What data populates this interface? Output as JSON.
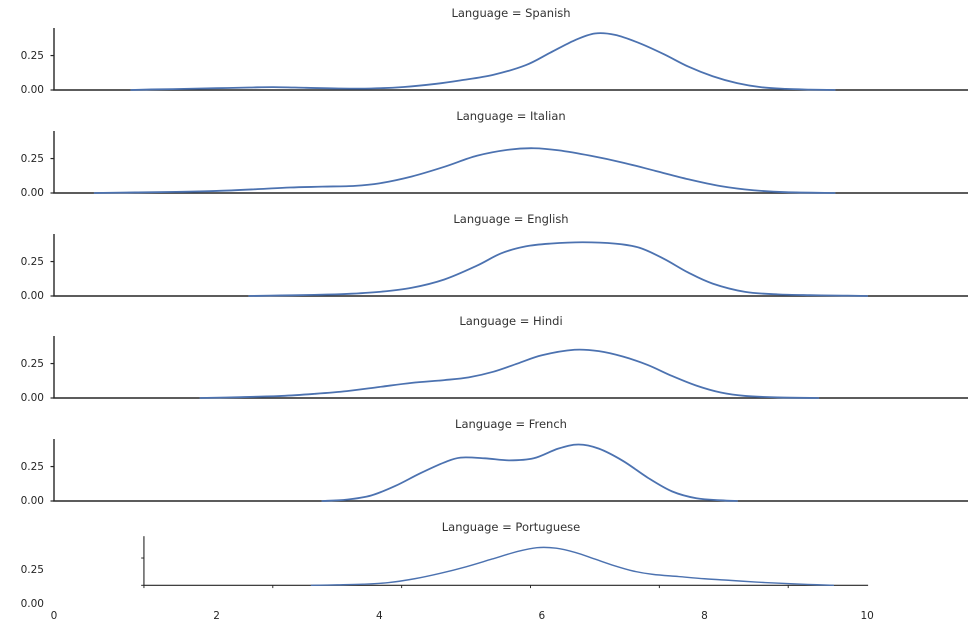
{
  "chart_data": {
    "type": "line",
    "subtype": "kde-facet-grid",
    "facet_row_variable": "Language",
    "x_axis": {
      "label": "",
      "lim": [
        0,
        11.24
      ],
      "ticks": [
        0,
        2,
        4,
        6,
        8,
        10
      ],
      "tick_labels": [
        "0",
        "2",
        "4",
        "6",
        "8",
        "10"
      ]
    },
    "y_axis": {
      "label": "",
      "lim": [
        0,
        0.45
      ],
      "ticks": [
        0.0,
        0.25
      ],
      "tick_labels": [
        "0.00",
        "0.25"
      ],
      "shared": true
    },
    "style": {
      "line_color": "#4c72b0",
      "line_width": 1.8,
      "axis_color": "#262626",
      "background": "#ffffff",
      "grid": false,
      "legend": "none"
    },
    "facets": [
      {
        "title": "Language = Spanish",
        "language": "Spanish",
        "peak_x": 6.6,
        "peak_density": 0.41,
        "points": [
          [
            0.95,
            0
          ],
          [
            1.2,
            0.004
          ],
          [
            1.6,
            0.008
          ],
          [
            2.0,
            0.013
          ],
          [
            2.4,
            0.018
          ],
          [
            2.7,
            0.021
          ],
          [
            3.1,
            0.016
          ],
          [
            3.5,
            0.011
          ],
          [
            3.9,
            0.011
          ],
          [
            4.3,
            0.022
          ],
          [
            4.7,
            0.045
          ],
          [
            5.0,
            0.07
          ],
          [
            5.4,
            0.11
          ],
          [
            5.8,
            0.18
          ],
          [
            6.1,
            0.27
          ],
          [
            6.4,
            0.36
          ],
          [
            6.65,
            0.41
          ],
          [
            6.9,
            0.4
          ],
          [
            7.2,
            0.34
          ],
          [
            7.5,
            0.26
          ],
          [
            7.8,
            0.17
          ],
          [
            8.1,
            0.1
          ],
          [
            8.4,
            0.05
          ],
          [
            8.7,
            0.02
          ],
          [
            9.0,
            0.008
          ],
          [
            9.3,
            0.003
          ],
          [
            9.6,
            0
          ]
        ]
      },
      {
        "title": "Language = Italian",
        "language": "Italian",
        "peak_x": 5.8,
        "peak_density": 0.325,
        "points": [
          [
            0.5,
            0
          ],
          [
            1.0,
            0.004
          ],
          [
            1.5,
            0.008
          ],
          [
            2.0,
            0.015
          ],
          [
            2.5,
            0.028
          ],
          [
            2.9,
            0.04
          ],
          [
            3.3,
            0.046
          ],
          [
            3.7,
            0.052
          ],
          [
            4.0,
            0.07
          ],
          [
            4.4,
            0.12
          ],
          [
            4.8,
            0.19
          ],
          [
            5.2,
            0.27
          ],
          [
            5.6,
            0.315
          ],
          [
            5.9,
            0.325
          ],
          [
            6.2,
            0.31
          ],
          [
            6.6,
            0.27
          ],
          [
            7.0,
            0.22
          ],
          [
            7.4,
            0.16
          ],
          [
            7.8,
            0.1
          ],
          [
            8.2,
            0.05
          ],
          [
            8.6,
            0.02
          ],
          [
            9.0,
            0.006
          ],
          [
            9.6,
            0
          ]
        ]
      },
      {
        "title": "Language = English",
        "language": "English",
        "peak_x": 6.5,
        "peak_density": 0.39,
        "points": [
          [
            2.4,
            0
          ],
          [
            2.8,
            0.004
          ],
          [
            3.2,
            0.008
          ],
          [
            3.6,
            0.015
          ],
          [
            4.0,
            0.03
          ],
          [
            4.4,
            0.06
          ],
          [
            4.8,
            0.12
          ],
          [
            5.2,
            0.22
          ],
          [
            5.5,
            0.31
          ],
          [
            5.8,
            0.36
          ],
          [
            6.1,
            0.38
          ],
          [
            6.5,
            0.39
          ],
          [
            6.9,
            0.38
          ],
          [
            7.2,
            0.35
          ],
          [
            7.5,
            0.27
          ],
          [
            7.8,
            0.17
          ],
          [
            8.1,
            0.09
          ],
          [
            8.5,
            0.03
          ],
          [
            8.9,
            0.012
          ],
          [
            9.3,
            0.006
          ],
          [
            9.7,
            0.003
          ],
          [
            10.0,
            0
          ]
        ]
      },
      {
        "title": "Language = Hindi",
        "language": "Hindi",
        "peak_x": 6.4,
        "peak_density": 0.35,
        "points": [
          [
            1.8,
            0
          ],
          [
            2.3,
            0.006
          ],
          [
            2.8,
            0.015
          ],
          [
            3.2,
            0.03
          ],
          [
            3.6,
            0.05
          ],
          [
            4.0,
            0.08
          ],
          [
            4.4,
            0.11
          ],
          [
            4.8,
            0.13
          ],
          [
            5.1,
            0.15
          ],
          [
            5.4,
            0.19
          ],
          [
            5.7,
            0.25
          ],
          [
            6.0,
            0.31
          ],
          [
            6.4,
            0.35
          ],
          [
            6.7,
            0.34
          ],
          [
            7.0,
            0.3
          ],
          [
            7.3,
            0.24
          ],
          [
            7.6,
            0.16
          ],
          [
            7.9,
            0.09
          ],
          [
            8.2,
            0.04
          ],
          [
            8.5,
            0.015
          ],
          [
            8.9,
            0.004
          ],
          [
            9.4,
            0
          ]
        ]
      },
      {
        "title": "Language = French",
        "language": "French",
        "peak_x": 6.45,
        "peak_density": 0.41,
        "points": [
          [
            3.3,
            0
          ],
          [
            3.6,
            0.01
          ],
          [
            3.9,
            0.04
          ],
          [
            4.2,
            0.11
          ],
          [
            4.5,
            0.2
          ],
          [
            4.8,
            0.28
          ],
          [
            5.0,
            0.315
          ],
          [
            5.3,
            0.31
          ],
          [
            5.6,
            0.295
          ],
          [
            5.9,
            0.31
          ],
          [
            6.2,
            0.38
          ],
          [
            6.45,
            0.41
          ],
          [
            6.7,
            0.38
          ],
          [
            7.0,
            0.29
          ],
          [
            7.3,
            0.17
          ],
          [
            7.6,
            0.07
          ],
          [
            7.9,
            0.02
          ],
          [
            8.2,
            0.005
          ],
          [
            8.4,
            0
          ]
        ]
      },
      {
        "title": "Language = Portuguese",
        "language": "Portuguese",
        "peak_x": 6.1,
        "peak_density": 0.345,
        "points": [
          [
            2.6,
            0
          ],
          [
            3.0,
            0.004
          ],
          [
            3.4,
            0.01
          ],
          [
            3.8,
            0.025
          ],
          [
            4.2,
            0.06
          ],
          [
            4.6,
            0.11
          ],
          [
            5.0,
            0.17
          ],
          [
            5.4,
            0.24
          ],
          [
            5.8,
            0.31
          ],
          [
            6.1,
            0.345
          ],
          [
            6.4,
            0.34
          ],
          [
            6.7,
            0.3
          ],
          [
            7.0,
            0.24
          ],
          [
            7.3,
            0.18
          ],
          [
            7.6,
            0.13
          ],
          [
            7.9,
            0.1
          ],
          [
            8.3,
            0.08
          ],
          [
            8.7,
            0.06
          ],
          [
            9.1,
            0.045
          ],
          [
            9.5,
            0.03
          ],
          [
            9.9,
            0.018
          ],
          [
            10.3,
            0.008
          ],
          [
            10.7,
            0
          ]
        ]
      }
    ]
  }
}
